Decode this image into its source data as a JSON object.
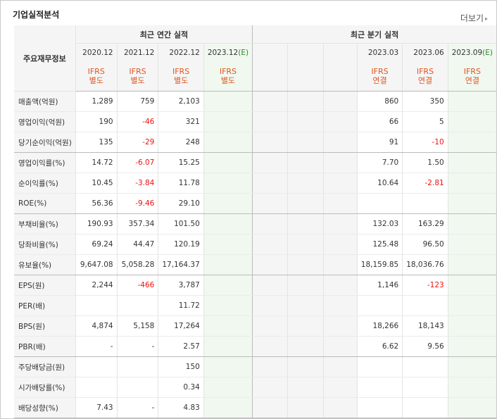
{
  "header": {
    "title": "기업실적분석",
    "more_label": "더보기"
  },
  "table": {
    "row_header_label": "주요재무정보",
    "annual_group_label": "최근 연간 실적",
    "quarter_group_label": "최근 분기 실적",
    "annual_periods": [
      "2020.12",
      "2021.12",
      "2022.12",
      "2023.12"
    ],
    "annual_est_marker": "(E)",
    "quarter_periods": [
      "",
      "",
      "",
      "2023.03",
      "2023.06",
      "2023.09"
    ],
    "quarter_est_marker": "(E)",
    "annual_basis": [
      [
        "IFRS",
        "별도"
      ],
      [
        "IFRS",
        "별도"
      ],
      [
        "IFRS",
        "별도"
      ],
      [
        "IFRS",
        "별도"
      ]
    ],
    "quarter_basis": [
      [
        "",
        ""
      ],
      [
        "",
        ""
      ],
      [
        "",
        ""
      ],
      [
        "IFRS",
        "연결"
      ],
      [
        "IFRS",
        "연결"
      ],
      [
        "IFRS",
        "연결"
      ]
    ],
    "rows": [
      {
        "label": "매출액(억원)",
        "annual": [
          "1,289",
          "759",
          "2,103",
          ""
        ],
        "quarter": [
          "",
          "",
          "",
          "860",
          "350",
          ""
        ]
      },
      {
        "label": "영업이익(억원)",
        "annual": [
          "190",
          "-46",
          "321",
          ""
        ],
        "quarter": [
          "",
          "",
          "",
          "66",
          "5",
          ""
        ]
      },
      {
        "label": "당기순이익(억원)",
        "annual": [
          "135",
          "-29",
          "248",
          ""
        ],
        "quarter": [
          "",
          "",
          "",
          "91",
          "-10",
          ""
        ]
      },
      {
        "label": "영업이익률(%)",
        "annual": [
          "14.72",
          "-6.07",
          "15.25",
          ""
        ],
        "quarter": [
          "",
          "",
          "",
          "7.70",
          "1.50",
          ""
        ]
      },
      {
        "label": "순이익률(%)",
        "annual": [
          "10.45",
          "-3.84",
          "11.78",
          ""
        ],
        "quarter": [
          "",
          "",
          "",
          "10.64",
          "-2.81",
          ""
        ]
      },
      {
        "label": "ROE(%)",
        "annual": [
          "56.36",
          "-9.46",
          "29.10",
          ""
        ],
        "quarter": [
          "",
          "",
          "",
          "",
          "",
          ""
        ]
      },
      {
        "label": "부채비율(%)",
        "annual": [
          "190.93",
          "357.34",
          "101.50",
          ""
        ],
        "quarter": [
          "",
          "",
          "",
          "132.03",
          "163.29",
          ""
        ]
      },
      {
        "label": "당좌비율(%)",
        "annual": [
          "69.24",
          "44.47",
          "120.19",
          ""
        ],
        "quarter": [
          "",
          "",
          "",
          "125.48",
          "96.50",
          ""
        ]
      },
      {
        "label": "유보율(%)",
        "annual": [
          "9,647.08",
          "5,058.28",
          "17,164.37",
          ""
        ],
        "quarter": [
          "",
          "",
          "",
          "18,159.85",
          "18,036.76",
          ""
        ]
      },
      {
        "label": "EPS(원)",
        "annual": [
          "2,244",
          "-466",
          "3,787",
          ""
        ],
        "quarter": [
          "",
          "",
          "",
          "1,146",
          "-123",
          ""
        ]
      },
      {
        "label": "PER(배)",
        "annual": [
          "",
          "",
          "11.72",
          ""
        ],
        "quarter": [
          "",
          "",
          "",
          "",
          "",
          ""
        ]
      },
      {
        "label": "BPS(원)",
        "annual": [
          "4,874",
          "5,158",
          "17,264",
          ""
        ],
        "quarter": [
          "",
          "",
          "",
          "18,266",
          "18,143",
          ""
        ]
      },
      {
        "label": "PBR(배)",
        "annual": [
          "-",
          "-",
          "2.57",
          ""
        ],
        "quarter": [
          "",
          "",
          "",
          "6.62",
          "9.56",
          ""
        ]
      },
      {
        "label": "주당배당금(원)",
        "annual": [
          "",
          "",
          "150",
          ""
        ],
        "quarter": [
          "",
          "",
          "",
          "",
          "",
          ""
        ]
      },
      {
        "label": "시가배당률(%)",
        "annual": [
          "",
          "",
          "0.34",
          ""
        ],
        "quarter": [
          "",
          "",
          "",
          "",
          "",
          ""
        ]
      },
      {
        "label": "배당성향(%)",
        "annual": [
          "7.43",
          "-",
          "4.83",
          ""
        ],
        "quarter": [
          "",
          "",
          "",
          "",
          "",
          ""
        ]
      }
    ]
  }
}
